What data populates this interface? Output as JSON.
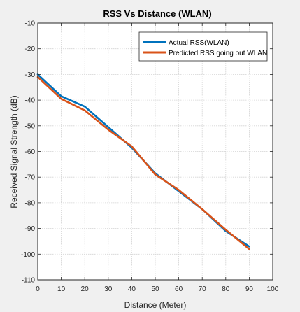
{
  "chart_data": {
    "type": "line",
    "title": "RSS Vs Distance (WLAN)",
    "xlabel": "Distance (Meter)",
    "ylabel": "Received Signal Strength (dB)",
    "xlim": [
      0,
      100
    ],
    "ylim": [
      -110,
      -10
    ],
    "xticks": [
      0,
      10,
      20,
      30,
      40,
      50,
      60,
      70,
      80,
      90,
      100
    ],
    "yticks": [
      -10,
      -20,
      -30,
      -40,
      -50,
      -60,
      -70,
      -80,
      -90,
      -100,
      -110
    ],
    "grid": true,
    "legend_position": "top-right",
    "series": [
      {
        "name": "Actual RSS(WLAN)",
        "color": "#0072bd",
        "x": [
          0,
          10,
          20,
          30,
          40,
          50,
          60,
          70,
          80,
          90
        ],
        "y": [
          -30,
          -38.5,
          -42.5,
          -50.5,
          -58.5,
          -68.5,
          -75.5,
          -82.5,
          -91,
          -97
        ]
      },
      {
        "name": "Predicted  RSS going out WLAN",
        "color": "#d95319",
        "x": [
          0,
          10,
          20,
          30,
          40,
          50,
          60,
          70,
          80,
          90
        ],
        "y": [
          -31,
          -39.5,
          -44,
          -51.5,
          -58,
          -69,
          -75,
          -82.5,
          -90.5,
          -98
        ]
      }
    ]
  }
}
